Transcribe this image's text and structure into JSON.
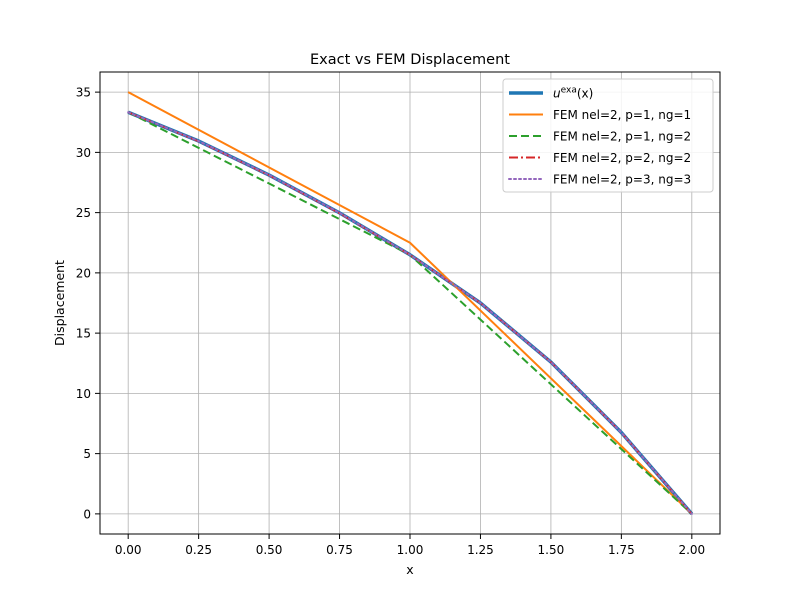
{
  "chart_data": {
    "type": "line",
    "title": "Exact vs FEM Displacement",
    "xlabel": "x",
    "ylabel": "Displacement",
    "xlim": [
      -0.1,
      2.1
    ],
    "ylim": [
      -1.67,
      36.67
    ],
    "xticks": [
      0.0,
      0.25,
      0.5,
      0.75,
      1.0,
      1.25,
      1.5,
      1.75,
      2.0
    ],
    "xtick_labels": [
      "0.00",
      "0.25",
      "0.50",
      "0.75",
      "1.00",
      "1.25",
      "1.50",
      "1.75",
      "2.00"
    ],
    "yticks": [
      0,
      5,
      10,
      15,
      20,
      25,
      30,
      35
    ],
    "ytick_labels": [
      "0",
      "5",
      "10",
      "15",
      "20",
      "25",
      "30",
      "35"
    ],
    "grid": true,
    "legend_position": "top-right",
    "series": [
      {
        "name": "u^exa(x)",
        "color": "#1f77b4",
        "style": "solid",
        "width": "thick",
        "x": [
          0,
          0.25,
          0.5,
          0.75,
          1.0,
          1.25,
          1.5,
          1.75,
          2.0
        ],
        "y": [
          33.33,
          30.94,
          28.12,
          24.98,
          21.5,
          17.5,
          12.6,
          6.75,
          0
        ]
      },
      {
        "name": "FEM nel=2, p=1, ng=1",
        "color": "#ff7f0e",
        "style": "solid",
        "width": "normal",
        "x": [
          0,
          1.0,
          2.0
        ],
        "y": [
          35.0,
          22.5,
          0
        ]
      },
      {
        "name": "FEM nel=2, p=1, ng=2",
        "color": "#2ca02c",
        "style": "dashed",
        "width": "normal",
        "x": [
          0,
          1.0,
          2.0
        ],
        "y": [
          33.33,
          21.5,
          0
        ]
      },
      {
        "name": "FEM nel=2, p=2, ng=2",
        "color": "#d62728",
        "style": "dashdot",
        "width": "normal",
        "x": [
          0,
          0.25,
          0.5,
          0.75,
          1.0,
          1.25,
          1.5,
          1.75,
          2.0
        ],
        "y": [
          33.33,
          30.92,
          28.1,
          24.95,
          21.5,
          17.5,
          12.6,
          6.75,
          0
        ]
      },
      {
        "name": "FEM nel=2, p=3, ng=3",
        "color": "#9467bd",
        "style": "dotted",
        "width": "normal",
        "x": [
          0,
          0.25,
          0.5,
          0.75,
          1.0,
          1.25,
          1.5,
          1.75,
          2.0
        ],
        "y": [
          33.33,
          30.94,
          28.12,
          24.98,
          21.5,
          17.5,
          12.6,
          6.75,
          0
        ]
      }
    ]
  }
}
